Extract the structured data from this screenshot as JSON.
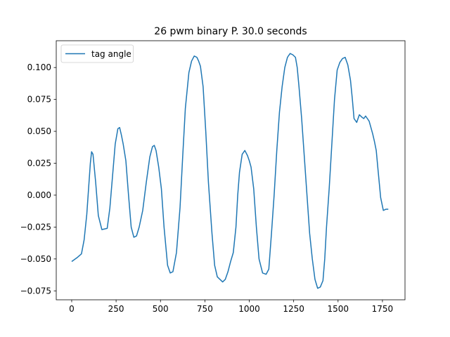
{
  "chart_data": {
    "type": "line",
    "title": "26 pwm binary P. 30.0 seconds",
    "xlabel": "",
    "ylabel": "",
    "xlim": [
      -87,
      1877
    ],
    "ylim": [
      -0.082,
      0.121
    ],
    "xticks": [
      0,
      250,
      500,
      750,
      1000,
      1250,
      1500,
      1750
    ],
    "xtick_labels": [
      "0",
      "250",
      "500",
      "750",
      "1000",
      "1250",
      "1500",
      "1750"
    ],
    "yticks": [
      -0.075,
      -0.05,
      -0.025,
      0.0,
      0.025,
      0.05,
      0.075,
      0.1
    ],
    "ytick_labels": [
      "−0.075",
      "−0.050",
      "−0.025",
      "0.000",
      "0.025",
      "0.050",
      "0.075",
      "0.100"
    ],
    "grid": false,
    "legend_position": "top-left",
    "series": [
      {
        "name": "tag angle",
        "color": "#1f77b4",
        "x": [
          0,
          30,
          55,
          70,
          85,
          95,
          105,
          112,
          120,
          135,
          150,
          170,
          200,
          215,
          230,
          245,
          260,
          270,
          280,
          290,
          305,
          320,
          335,
          350,
          365,
          380,
          400,
          420,
          440,
          455,
          465,
          475,
          490,
          505,
          520,
          540,
          555,
          570,
          590,
          610,
          625,
          640,
          660,
          675,
          690,
          705,
          715,
          725,
          740,
          755,
          770,
          790,
          805,
          820,
          835,
          850,
          865,
          880,
          895,
          910,
          925,
          935,
          945,
          960,
          975,
          990,
          1000,
          1010,
          1025,
          1040,
          1055,
          1075,
          1095,
          1110,
          1125,
          1140,
          1155,
          1170,
          1185,
          1200,
          1215,
          1230,
          1245,
          1260,
          1270,
          1280,
          1295,
          1310,
          1325,
          1340,
          1355,
          1370,
          1385,
          1400,
          1415,
          1425,
          1435,
          1450,
          1465,
          1480,
          1495,
          1510,
          1525,
          1540,
          1555,
          1570,
          1580,
          1590,
          1605,
          1620,
          1635,
          1645,
          1655,
          1665,
          1675,
          1685,
          1695,
          1705,
          1715,
          1725,
          1740,
          1755,
          1770,
          1783
        ],
        "values": [
          -0.052,
          -0.049,
          -0.046,
          -0.035,
          -0.015,
          0.005,
          0.025,
          0.034,
          0.032,
          0.01,
          -0.016,
          -0.027,
          -0.026,
          -0.01,
          0.015,
          0.04,
          0.052,
          0.053,
          0.047,
          0.04,
          0.027,
          0.0,
          -0.025,
          -0.033,
          -0.032,
          -0.025,
          -0.012,
          0.01,
          0.03,
          0.038,
          0.039,
          0.035,
          0.022,
          0.005,
          -0.025,
          -0.055,
          -0.061,
          -0.06,
          -0.045,
          -0.01,
          0.03,
          0.068,
          0.096,
          0.105,
          0.109,
          0.108,
          0.105,
          0.101,
          0.085,
          0.05,
          0.01,
          -0.03,
          -0.055,
          -0.064,
          -0.066,
          -0.068,
          -0.066,
          -0.06,
          -0.052,
          -0.045,
          -0.025,
          0.0,
          0.018,
          0.032,
          0.035,
          0.031,
          0.027,
          0.022,
          0.005,
          -0.025,
          -0.05,
          -0.061,
          -0.062,
          -0.058,
          -0.03,
          0.0,
          0.035,
          0.065,
          0.085,
          0.1,
          0.108,
          0.111,
          0.11,
          0.108,
          0.1,
          0.085,
          0.06,
          0.03,
          0.0,
          -0.03,
          -0.05,
          -0.066,
          -0.073,
          -0.072,
          -0.067,
          -0.05,
          -0.025,
          0.005,
          0.04,
          0.075,
          0.098,
          0.104,
          0.107,
          0.108,
          0.102,
          0.09,
          0.076,
          0.06,
          0.057,
          0.063,
          0.061,
          0.06,
          0.062,
          0.06,
          0.058,
          0.053,
          0.048,
          0.042,
          0.035,
          0.02,
          -0.002,
          -0.012,
          -0.011,
          -0.011
        ]
      }
    ]
  }
}
